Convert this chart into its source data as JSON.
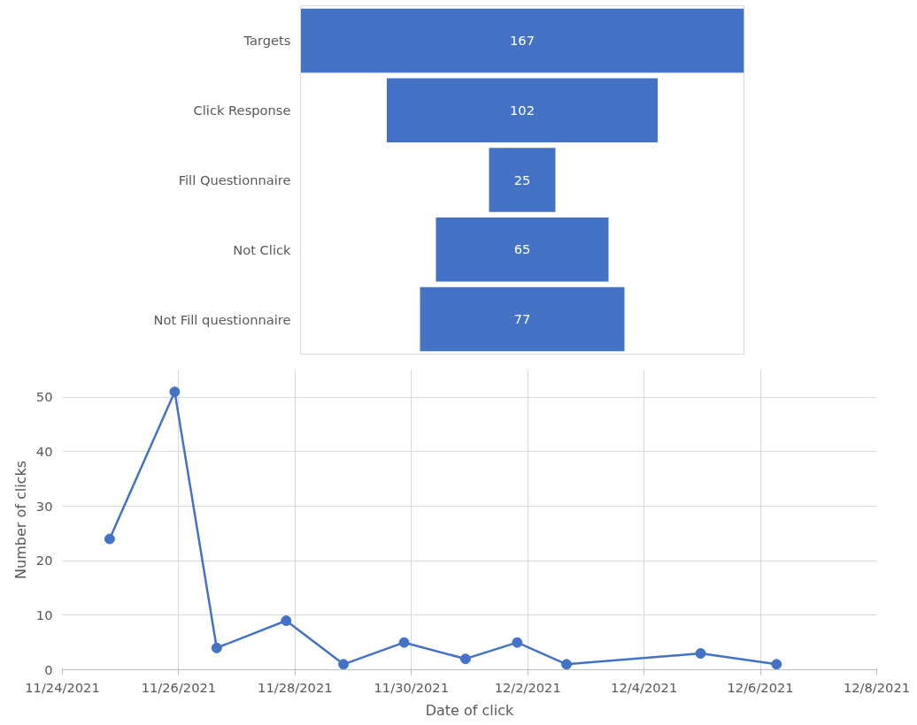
{
  "chart_data": [
    {
      "type": "other",
      "categories": [
        "Targets",
        "Click Response",
        "Fill Questionnaire",
        "Not Click",
        "Not Fill questionnaire"
      ],
      "values": [
        167,
        102,
        25,
        65,
        77
      ],
      "color": "#4472c4",
      "data_labels": true
    },
    {
      "type": "line",
      "xlabel": "Date of click",
      "ylabel": "Number of clicks",
      "x": [
        "2021-11-24T19:30",
        "2021-11-25T22:20",
        "2021-11-26T15:40",
        "2021-11-27T20:20",
        "2021-11-28T20:00",
        "2021-11-29T21:00",
        "2021-11-30T22:20",
        "2021-12-01T19:40",
        "2021-12-02T16:00",
        "2021-12-04T23:20",
        "2021-12-06T06:40"
      ],
      "series": [
        {
          "color": "#4472c4",
          "values": [
            24,
            51,
            4,
            9,
            1,
            5,
            2,
            5,
            1,
            3,
            1
          ]
        }
      ],
      "xlim": [
        "2021-11-24",
        "2021-12-08"
      ],
      "xticks": [
        {
          "value": "2021-11-24",
          "label": "11/24/2021"
        },
        {
          "value": "2021-11-26",
          "label": "11/26/2021"
        },
        {
          "value": "2021-11-28",
          "label": "11/28/2021"
        },
        {
          "value": "2021-11-30",
          "label": "11/30/2021"
        },
        {
          "value": "2021-12-02",
          "label": "12/2/2021"
        },
        {
          "value": "2021-12-04",
          "label": "12/4/2021"
        },
        {
          "value": "2021-12-06",
          "label": "12/6/2021"
        },
        {
          "value": "2021-12-08",
          "label": "12/8/2021"
        }
      ],
      "ylim": [
        0,
        55
      ],
      "yticks": [
        0,
        10,
        20,
        30,
        40,
        50
      ],
      "grid": true,
      "marker": "circle",
      "line_style": "solid"
    }
  ]
}
